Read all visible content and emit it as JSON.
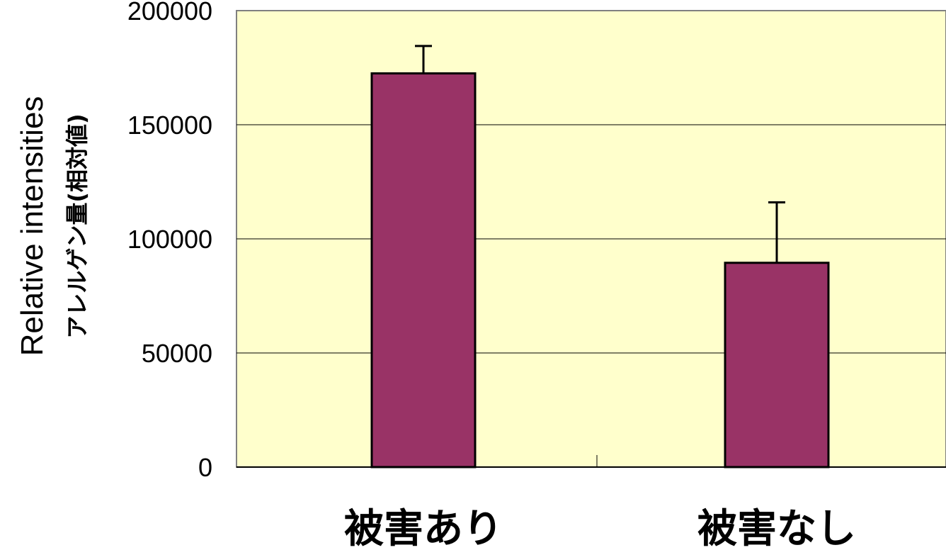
{
  "chart_data": {
    "type": "bar",
    "categories": [
      "被害あり",
      "被害なし"
    ],
    "values": [
      172500,
      89500
    ],
    "error_upper": [
      184500,
      116000
    ],
    "ylabel": "Relative intensities",
    "ylabel_secondary": "アレルゲン量(相対値)",
    "ylim": [
      0,
      200000
    ],
    "yticks": [
      "200000",
      "150000",
      "100000",
      "50000",
      "0"
    ],
    "ytick_values": [
      200000,
      150000,
      100000,
      50000,
      0
    ],
    "grid": true,
    "legend": "none",
    "colors": {
      "bar": "#993366",
      "plot_background": "#ffffcc",
      "gridline": "#000000"
    }
  }
}
